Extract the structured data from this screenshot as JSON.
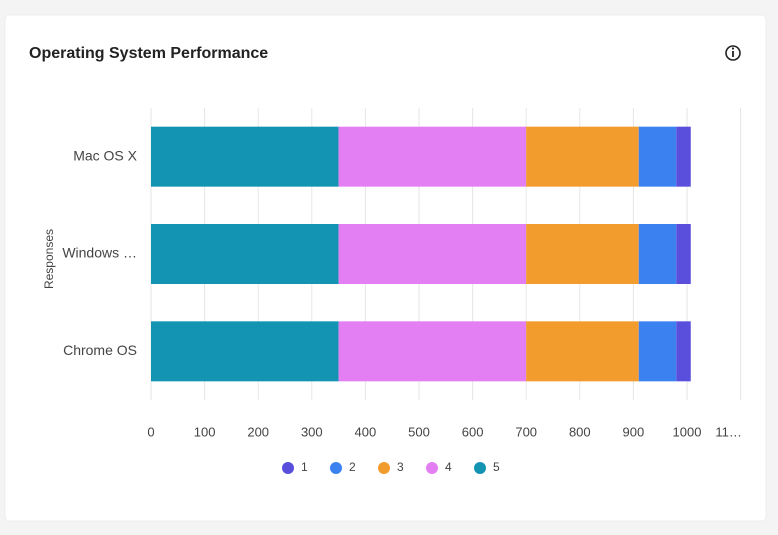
{
  "chart_data": {
    "type": "stacked-bar-horizontal",
    "title": "Operating System Performance",
    "y_label": "Responses",
    "categories": [
      "Mac OS X",
      "Windows …",
      "Chrome OS"
    ],
    "series": [
      {
        "name": "1",
        "color": "#5a4fdc",
        "values": [
          27,
          27,
          27
        ]
      },
      {
        "name": "2",
        "color": "#3b82f0",
        "values": [
          70,
          70,
          70
        ]
      },
      {
        "name": "3",
        "color": "#f39c2e",
        "values": [
          210,
          210,
          210
        ]
      },
      {
        "name": "4",
        "color": "#e47ff3",
        "values": [
          350,
          350,
          350
        ]
      },
      {
        "name": "5",
        "color": "#1494b3",
        "values": [
          350,
          350,
          350
        ]
      }
    ],
    "xlim": [
      0,
      1100
    ],
    "xticks": [
      0,
      100,
      200,
      300,
      400,
      500,
      600,
      700,
      800,
      900,
      1000,
      {
        "value": 1100,
        "label": "11…"
      }
    ],
    "grid": true
  }
}
